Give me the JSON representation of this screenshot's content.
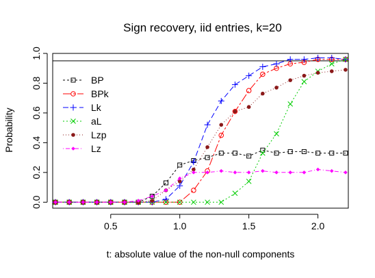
{
  "chart_data": {
    "type": "line",
    "title": "Sign recovery, iid entries,  k=20",
    "xlabel": "t: absolute value of the non-null components",
    "ylabel": "Probability",
    "xlim": [
      0.08,
      2.22
    ],
    "ylim": [
      -0.04,
      1.0
    ],
    "x_ticks": [
      0.5,
      1.0,
      1.5,
      2.0
    ],
    "x_tick_labels": [
      "0.5",
      "1.0",
      "1.5",
      "2.0"
    ],
    "y_ticks": [
      0.0,
      0.2,
      0.4,
      0.6,
      0.8,
      1.0
    ],
    "y_tick_labels": [
      "0.0",
      "0.2",
      "0.4",
      "0.6",
      "0.8",
      "1.0"
    ],
    "hline": 0.95,
    "grid": false,
    "legend_position": "top-left",
    "x": [
      0.1,
      0.2,
      0.3,
      0.4,
      0.5,
      0.6,
      0.7,
      0.8,
      0.9,
      1.0,
      1.1,
      1.2,
      1.3,
      1.4,
      1.5,
      1.6,
      1.7,
      1.8,
      1.9,
      2.0,
      2.1,
      2.2
    ],
    "series": [
      {
        "name": "BP",
        "color": "#000000",
        "marker": "square-open",
        "dash": "3,3",
        "values": [
          0,
          0,
          0,
          0,
          0,
          0,
          0,
          0.04,
          0.13,
          0.25,
          0.28,
          0.3,
          0.33,
          0.33,
          0.31,
          0.35,
          0.33,
          0.34,
          0.34,
          0.33,
          0.33,
          0.33
        ]
      },
      {
        "name": "BPk",
        "color": "#ff0000",
        "marker": "circle-open",
        "dash": "12,3,3,3",
        "values": [
          0,
          0,
          0,
          0,
          0,
          0,
          0,
          0,
          0,
          0,
          0.08,
          0.21,
          0.45,
          0.61,
          0.75,
          0.86,
          0.9,
          0.93,
          0.94,
          0.96,
          0.96,
          0.96
        ]
      },
      {
        "name": "Lk",
        "color": "#0000ff",
        "marker": "plus",
        "dash": "8,4",
        "values": [
          0,
          0,
          0,
          0,
          0,
          0,
          0,
          0,
          0.02,
          0.11,
          0.27,
          0.52,
          0.68,
          0.79,
          0.85,
          0.91,
          0.93,
          0.96,
          0.96,
          0.97,
          0.97,
          0.96
        ]
      },
      {
        "name": "aL",
        "color": "#00cc00",
        "marker": "x",
        "dash": "2,3",
        "values": [
          0,
          0,
          0,
          0,
          0,
          0,
          0,
          0,
          0,
          0,
          0,
          0,
          0,
          0.06,
          0.14,
          0.33,
          0.46,
          0.66,
          0.81,
          0.88,
          0.93,
          0.96
        ]
      },
      {
        "name": "Lzp",
        "color": "#8b1a1a",
        "marker": "dot-filled",
        "dash": "1,3",
        "values": [
          0,
          0,
          0,
          0,
          0,
          0,
          0,
          0.01,
          0.08,
          0.14,
          0.22,
          0.37,
          0.52,
          0.61,
          0.64,
          0.73,
          0.77,
          0.82,
          0.85,
          0.87,
          0.88,
          0.89
        ]
      },
      {
        "name": "Lz",
        "color": "#ff00ff",
        "marker": "diamond-filled",
        "dash": "1,3,6,3",
        "values": [
          0,
          0,
          0,
          0,
          0,
          0,
          0.01,
          0.04,
          0.08,
          0.16,
          0.2,
          0.2,
          0.21,
          0.2,
          0.2,
          0.21,
          0.2,
          0.2,
          0.2,
          0.22,
          0.21,
          0.2
        ]
      }
    ]
  }
}
